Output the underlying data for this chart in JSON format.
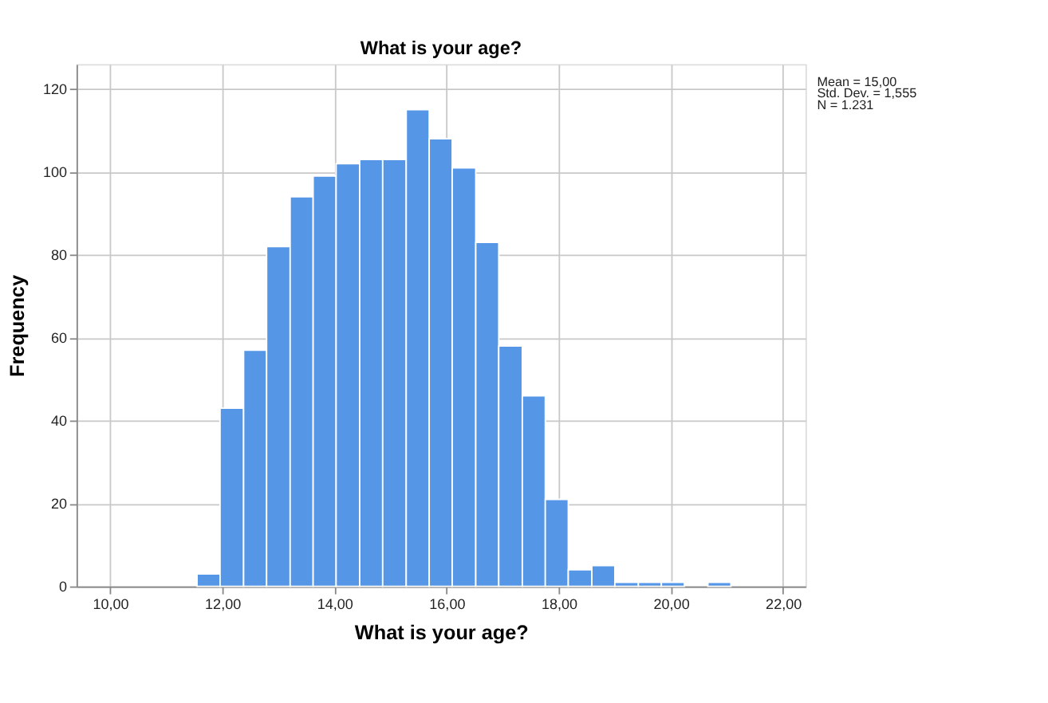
{
  "chart_data": {
    "type": "histogram",
    "title": "What is your age?",
    "xlabel": "What is your age?",
    "ylabel": "Frequency",
    "bins": [
      11.55,
      11.96,
      12.38,
      12.79,
      13.21,
      13.62,
      14.03,
      14.45,
      14.86,
      15.28,
      15.69,
      16.1,
      16.52,
      16.93,
      17.35,
      17.76,
      18.17,
      18.59,
      19.0,
      19.42,
      19.83,
      20.24,
      20.66,
      21.07
    ],
    "values": [
      3,
      43,
      57,
      82,
      94,
      99,
      102,
      103,
      103,
      115,
      108,
      101,
      83,
      58,
      46,
      21,
      4,
      5,
      1,
      1,
      1,
      0,
      1
    ],
    "color": "#5596e6",
    "xlim": [
      9.4,
      22.4
    ],
    "ylim": [
      0,
      126
    ],
    "xticks": [
      {
        "value": 10,
        "label": "10,00"
      },
      {
        "value": 12,
        "label": "12,00"
      },
      {
        "value": 14,
        "label": "14,00"
      },
      {
        "value": 16,
        "label": "16,00"
      },
      {
        "value": 18,
        "label": "18,00"
      },
      {
        "value": 20,
        "label": "20,00"
      },
      {
        "value": 22,
        "label": "22,00"
      }
    ],
    "yticks": [
      0,
      20,
      40,
      60,
      80,
      100,
      120
    ],
    "grid": true,
    "annotations": [
      "Mean = 15,00",
      "Std. Dev. = 1,555",
      "N = 1.231"
    ]
  }
}
